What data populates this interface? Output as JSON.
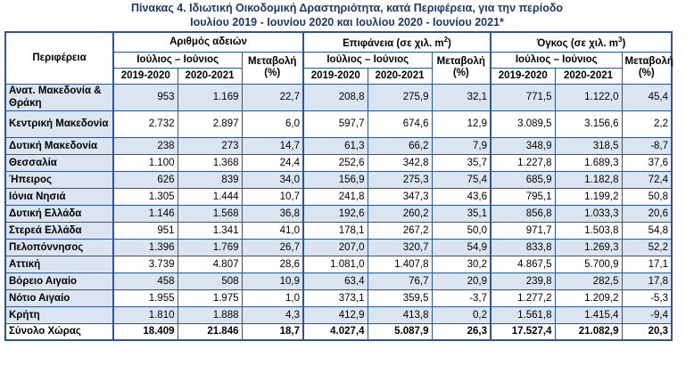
{
  "title_line1": "Πίνακας 4. Ιδιωτική Οικοδομική Δραστηριότητα, κατά  Περιφέρεια, για την περίοδο",
  "title_line2": "Ιουλίου 2019 - Ιουνίου 2020 και Ιουλίου 2020 - Ιουνίου 2021*",
  "header": {
    "region": "Περιφέρεια",
    "group1": "Αριθμός αδειών",
    "group2": "Επιφάνεια (σε χιλ. m",
    "group2_sup": "2",
    "group3": "Όγκος (σε χιλ. m",
    "group3_sup": "3",
    "period": "Ιούλιος – Ιούνιος",
    "change": "Μεταβολή (%)",
    "y1": "2019-2020",
    "y2": "2020-2021"
  },
  "rows": [
    {
      "region": "Ανατ. Μακεδονία & Θράκη",
      "a1": "953",
      "a2": "1.169",
      "ac": "22,7",
      "e1": "208,8",
      "e2": "275,9",
      "ec": "32,1",
      "o1": "771,5",
      "o2": "1.122,0",
      "oc": "45,4"
    },
    {
      "region": "Κεντρική Μακεδονία",
      "a1": "2.732",
      "a2": "2.897",
      "ac": "6,0",
      "e1": "597,7",
      "e2": "674,6",
      "ec": "12,9",
      "o1": "3.089,5",
      "o2": "3.156,6",
      "oc": "2,2"
    },
    {
      "region": "Δυτική Μακεδονία",
      "a1": "238",
      "a2": "273",
      "ac": "14,7",
      "e1": "61,3",
      "e2": "66,2",
      "ec": "7,9",
      "o1": "348,9",
      "o2": "318,5",
      "oc": "-8,7"
    },
    {
      "region": "Θεσσαλία",
      "a1": "1.100",
      "a2": "1.368",
      "ac": "24,4",
      "e1": "252,6",
      "e2": "342,8",
      "ec": "35,7",
      "o1": "1.227,8",
      "o2": "1.689,3",
      "oc": "37,6"
    },
    {
      "region": "Ήπειρος",
      "a1": "626",
      "a2": "839",
      "ac": "34,0",
      "e1": "156,9",
      "e2": "275,3",
      "ec": "75,4",
      "o1": "685,9",
      "o2": "1.182,8",
      "oc": "72,4"
    },
    {
      "region": "Ιόνια Νησιά",
      "a1": "1.305",
      "a2": "1.444",
      "ac": "10,7",
      "e1": "241,8",
      "e2": "347,3",
      "ec": "43,6",
      "o1": "795,1",
      "o2": "1.199,2",
      "oc": "50,8"
    },
    {
      "region": "Δυτική Ελλάδα",
      "a1": "1.146",
      "a2": "1.568",
      "ac": "36,8",
      "e1": "192,6",
      "e2": "260,2",
      "ec": "35,1",
      "o1": "856,8",
      "o2": "1.033,3",
      "oc": "20,6"
    },
    {
      "region": "Στερεά Ελλάδα",
      "a1": "951",
      "a2": "1.341",
      "ac": "41,0",
      "e1": "178,1",
      "e2": "267,2",
      "ec": "50,0",
      "o1": "971,7",
      "o2": "1.503,8",
      "oc": "54,8"
    },
    {
      "region": "Πελοπόννησος",
      "a1": "1.396",
      "a2": "1.769",
      "ac": "26,7",
      "e1": "207,0",
      "e2": "320,7",
      "ec": "54,9",
      "o1": "833,8",
      "o2": "1.269,3",
      "oc": "52,2"
    },
    {
      "region": "Αττική",
      "a1": "3.739",
      "a2": "4.807",
      "ac": "28,6",
      "e1": "1.081,0",
      "e2": "1.407,8",
      "ec": "30,2",
      "o1": "4.867,5",
      "o2": "5.700,9",
      "oc": "17,1"
    },
    {
      "region": "Βόρειο Αιγαίο",
      "a1": "458",
      "a2": "508",
      "ac": "10,9",
      "e1": "63,4",
      "e2": "76,7",
      "ec": "20,9",
      "o1": "239,8",
      "o2": "282,5",
      "oc": "17,8"
    },
    {
      "region": "Νότιο Αιγαίο",
      "a1": "1.955",
      "a2": "1.975",
      "ac": "1,0",
      "e1": "373,1",
      "e2": "359,5",
      "ec": "-3,7",
      "o1": "1.277,2",
      "o2": "1.209,2",
      "oc": "-5,3"
    },
    {
      "region": "Κρήτη",
      "a1": "1.810",
      "a2": "1.888",
      "ac": "4,3",
      "e1": "412,9",
      "e2": "413,8",
      "ec": "0,2",
      "o1": "1.561,8",
      "o2": "1.415,4",
      "oc": "-9,4"
    }
  ],
  "total": {
    "region": "Σύνολο Χώρας",
    "a1": "18.409",
    "a2": "21.846",
    "ac": "18,7",
    "e1": "4.027,4",
    "e2": "5.087,9",
    "ec": "26,3",
    "o1": "17.527,4",
    "o2": "21.082,9",
    "oc": "20,3"
  }
}
